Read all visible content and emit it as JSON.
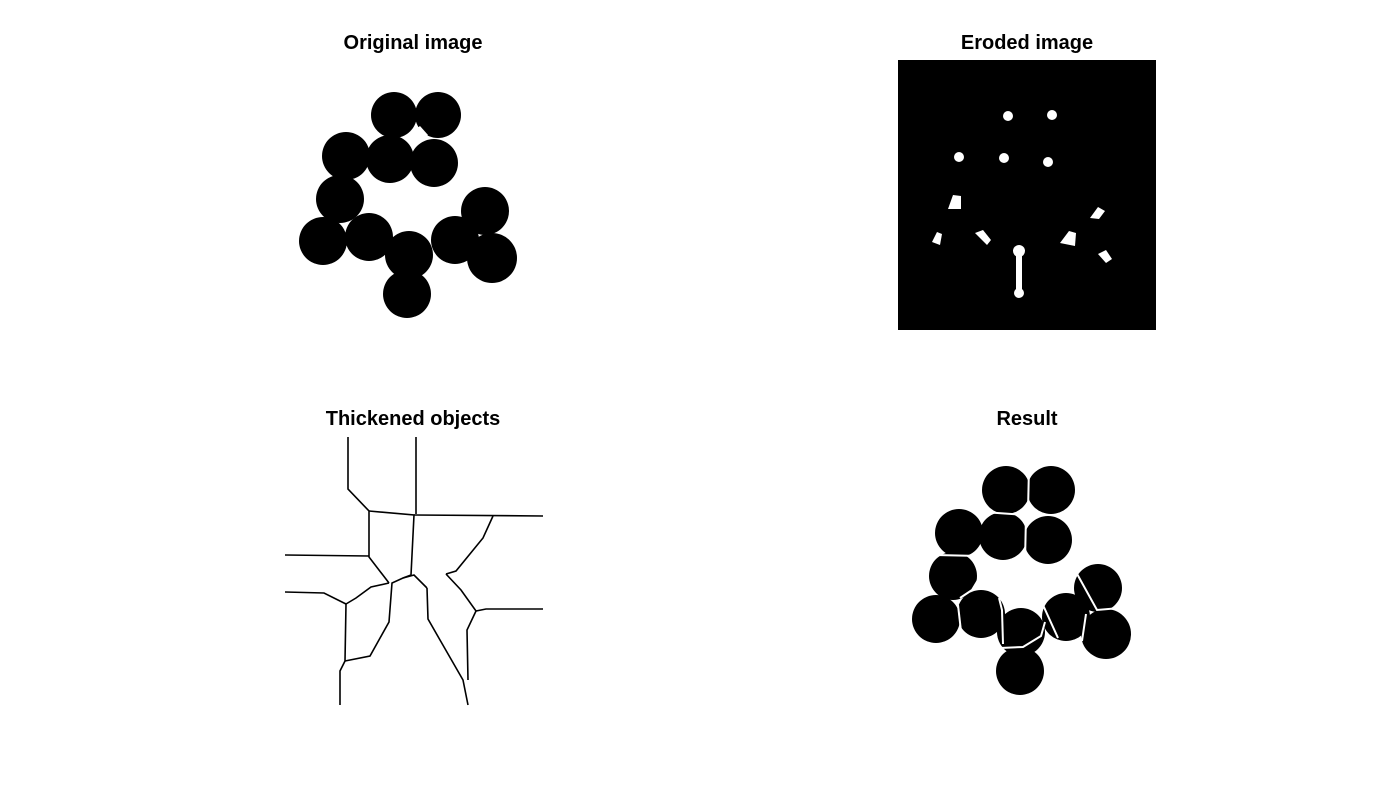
{
  "panels": [
    {
      "title": "Original image"
    },
    {
      "title": "Eroded image"
    },
    {
      "title": "Thickened objects"
    },
    {
      "title": "Result"
    }
  ],
  "colors": {
    "foreground": "#000000",
    "background": "#ffffff"
  }
}
